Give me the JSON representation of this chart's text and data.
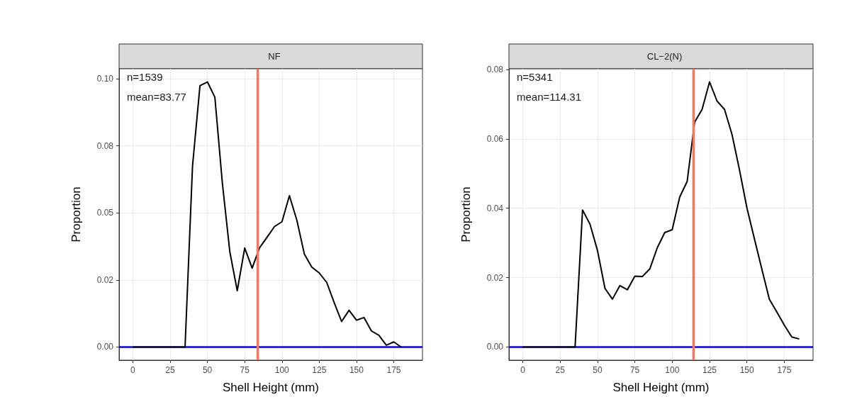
{
  "chart_data": [
    {
      "type": "line",
      "title": "NF",
      "xlabel": "Shell Height (mm)",
      "ylabel": "Proportion",
      "annotations": [
        "n=1539",
        "mean=83.77"
      ],
      "x": [
        0,
        5,
        10,
        15,
        20,
        25,
        30,
        35,
        40,
        45,
        50,
        55,
        60,
        65,
        70,
        75,
        80,
        85,
        90,
        95,
        100,
        105,
        110,
        115,
        120,
        125,
        130,
        135,
        140,
        145,
        150,
        155,
        160,
        165,
        170,
        175,
        180
      ],
      "series": [
        {
          "color": "#000000",
          "values": [
            0,
            0,
            0,
            0,
            0,
            0,
            0,
            0,
            0.0674,
            0.0974,
            0.0988,
            0.0931,
            0.0612,
            0.0356,
            0.021,
            0.0369,
            0.0294,
            0.037,
            0.0409,
            0.0449,
            0.0467,
            0.0564,
            0.0472,
            0.0347,
            0.0298,
            0.0276,
            0.0241,
            0.0166,
            0.0095,
            0.0137,
            0.01,
            0.011,
            0.006,
            0.0044,
            0.0007,
            0.0019,
            0
          ]
        }
      ],
      "xlim": [
        -9.25,
        194.25
      ],
      "xticks": [
        0,
        25,
        50,
        75,
        100,
        125,
        150,
        175
      ],
      "ylim": [
        -0.0049,
        0.1037
      ],
      "yticks": [
        {
          "value": 0,
          "label": "0.00"
        },
        {
          "value": 0.025,
          "label": "0.02"
        },
        {
          "value": 0.05,
          "label": "0.05"
        },
        {
          "value": 0.075,
          "label": "0.08"
        },
        {
          "value": 0.1,
          "label": "0.10"
        }
      ],
      "ref_lines": [
        {
          "axis": "y",
          "value": 0,
          "color": "#0000ff"
        },
        {
          "axis": "x",
          "value": 83.77,
          "color": "#f8765c"
        }
      ],
      "grid": true,
      "marker": "none",
      "line_style": "solid"
    },
    {
      "type": "line",
      "title": "CL−2(N)",
      "xlabel": "Shell Height (mm)",
      "ylabel": "Proportion",
      "annotations": [
        "n=5341",
        "mean=114.31"
      ],
      "x": [
        0,
        5,
        10,
        15,
        20,
        25,
        30,
        35,
        40,
        45,
        50,
        55,
        60,
        65,
        70,
        75,
        80,
        85,
        90,
        95,
        100,
        105,
        110,
        115,
        120,
        125,
        130,
        135,
        140,
        145,
        150,
        155,
        160,
        165,
        170,
        175,
        180,
        185
      ],
      "series": [
        {
          "color": "#000000",
          "values": [
            0,
            0,
            0,
            0,
            0,
            0,
            0,
            0,
            0.0395,
            0.0354,
            0.0278,
            0.0169,
            0.0138,
            0.0177,
            0.0165,
            0.0204,
            0.0203,
            0.0225,
            0.0286,
            0.033,
            0.0338,
            0.0432,
            0.0477,
            0.0648,
            0.0685,
            0.0764,
            0.0709,
            0.0685,
            0.0613,
            0.0511,
            0.0401,
            0.0312,
            0.0224,
            0.0138,
            0.0101,
            0.0063,
            0.0029,
            0.0023
          ]
        }
      ],
      "xlim": [
        -9.25,
        194.25
      ],
      "xticks": [
        0,
        25,
        50,
        75,
        100,
        125,
        150,
        175
      ],
      "ylim": [
        -0.0038,
        0.0802
      ],
      "yticks": [
        {
          "value": 0,
          "label": "0.00"
        },
        {
          "value": 0.02,
          "label": "0.02"
        },
        {
          "value": 0.04,
          "label": "0.04"
        },
        {
          "value": 0.06,
          "label": "0.06"
        },
        {
          "value": 0.08,
          "label": "0.08"
        }
      ],
      "ref_lines": [
        {
          "axis": "y",
          "value": 0,
          "color": "#0000ff"
        },
        {
          "axis": "x",
          "value": 114.31,
          "color": "#f8765c"
        }
      ],
      "grid": true,
      "marker": "none",
      "line_style": "solid"
    }
  ]
}
